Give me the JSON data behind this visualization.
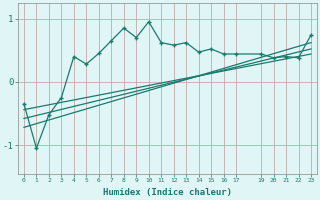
{
  "xlabel": "Humidex (Indice chaleur)",
  "bg_color": "#e0f5f5",
  "grid_v_color": "#c8a8a8",
  "grid_h_color": "#c8a8a8",
  "line_color": "#1a7a6e",
  "xlim": [
    -0.5,
    23.5
  ],
  "ylim": [
    -1.45,
    1.25
  ],
  "yticks": [
    -1,
    0,
    1
  ],
  "xtick_positions": [
    0,
    1,
    2,
    3,
    4,
    5,
    6,
    7,
    8,
    9,
    10,
    11,
    12,
    13,
    14,
    15,
    16,
    17,
    19,
    20,
    21,
    22,
    23
  ],
  "xtick_labels": [
    "0",
    "1",
    "2",
    "3",
    "4",
    "5",
    "6",
    "7",
    "8",
    "9",
    "10",
    "11",
    "12",
    "13",
    "14",
    "15",
    "16",
    "17",
    "19",
    "20",
    "21",
    "22",
    "23"
  ],
  "main_x": [
    0,
    1,
    2,
    3,
    4,
    5,
    6,
    7,
    8,
    9,
    10,
    11,
    12,
    13,
    14,
    15,
    16,
    17,
    19,
    20,
    21,
    22,
    23
  ],
  "main_y": [
    -0.35,
    -1.05,
    -0.52,
    -0.25,
    0.4,
    0.28,
    0.45,
    0.65,
    0.85,
    0.7,
    0.95,
    0.62,
    0.58,
    0.62,
    0.47,
    0.52,
    0.44,
    0.44,
    0.44,
    0.38,
    0.4,
    0.38,
    0.74
  ],
  "line1_x": [
    0,
    23
  ],
  "line1_y": [
    -0.72,
    0.62
  ],
  "line2_x": [
    0,
    23
  ],
  "line2_y": [
    -0.58,
    0.52
  ],
  "line3_x": [
    0,
    23
  ],
  "line3_y": [
    -0.44,
    0.44
  ]
}
